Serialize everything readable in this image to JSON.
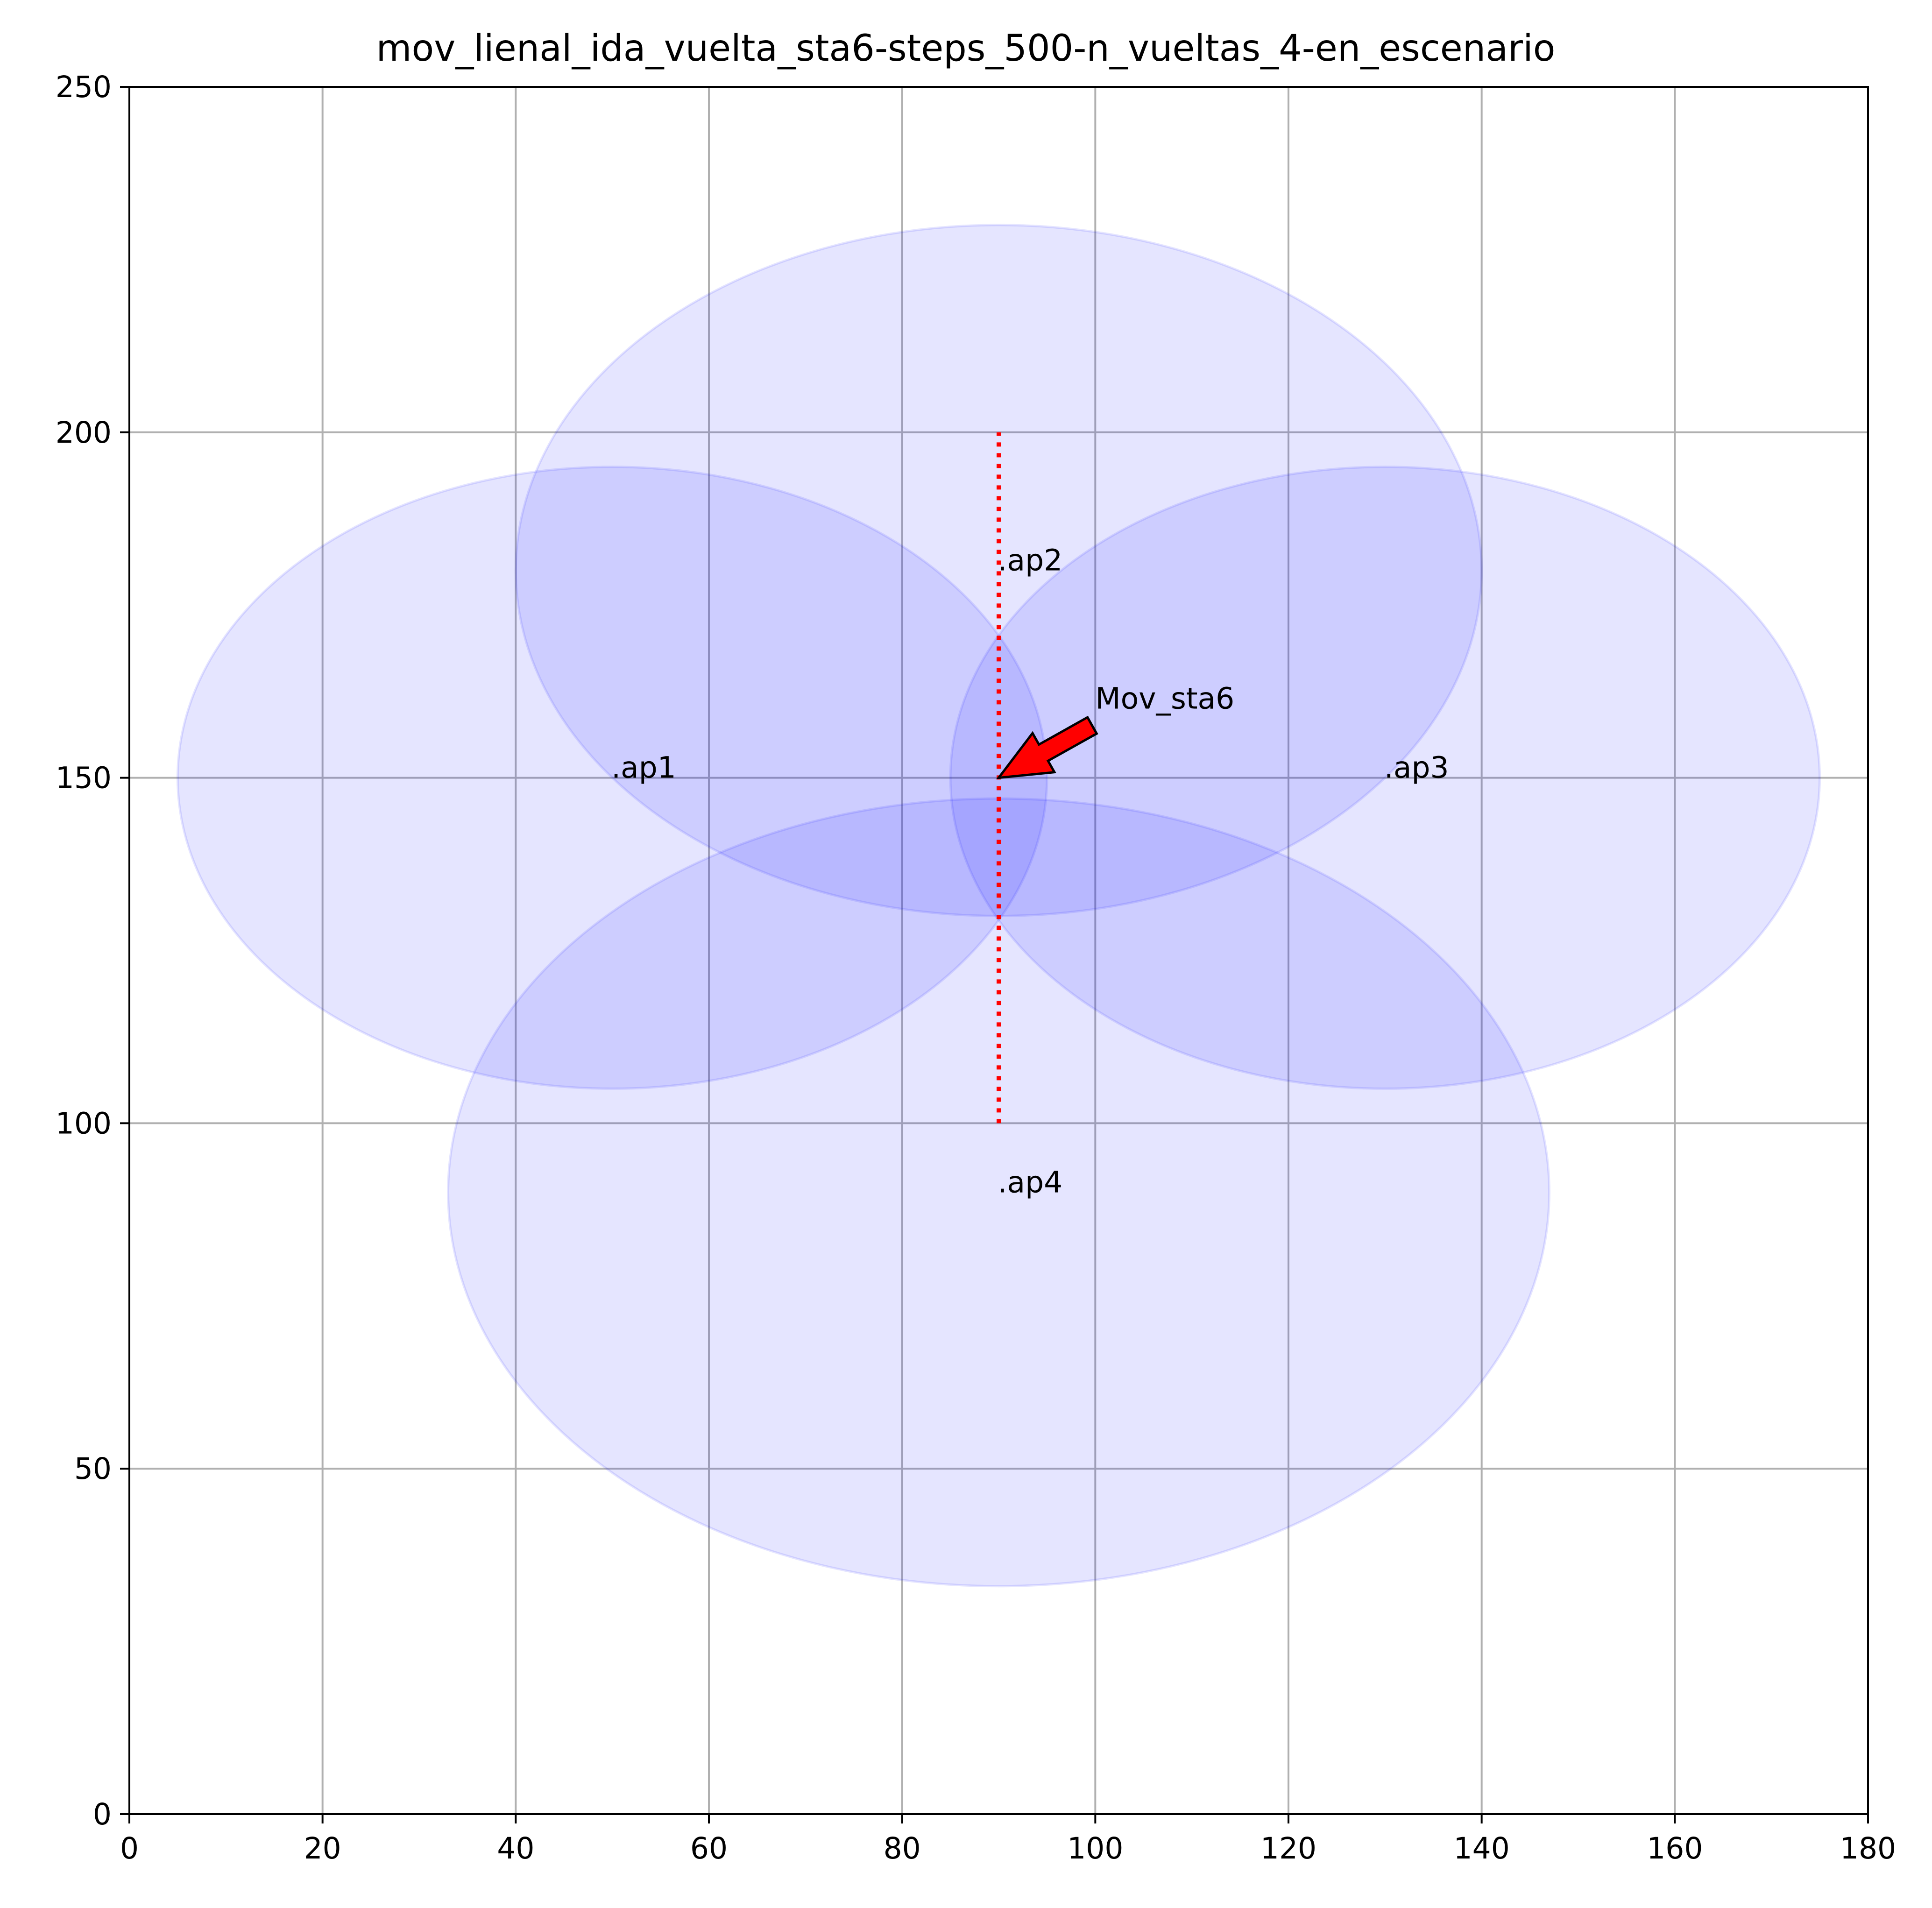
{
  "chart_data": {
    "type": "scatter",
    "title": "mov_lienal_ida_vuelta_sta6-steps_500-n_vueltas_4-en_escenario",
    "xlabel": "",
    "ylabel": "",
    "xlim": [
      0,
      180
    ],
    "ylim": [
      0,
      250
    ],
    "xticks": [
      0,
      20,
      40,
      60,
      80,
      100,
      120,
      140,
      160,
      180
    ],
    "yticks": [
      0,
      50,
      100,
      150,
      200,
      250
    ],
    "grid": true,
    "access_points": [
      {
        "label": ".ap1",
        "x": 50,
        "y": 150,
        "range_x": 45,
        "range_y": 45
      },
      {
        "label": ".ap2",
        "x": 90,
        "y": 180,
        "range_x": 50,
        "range_y": 50
      },
      {
        "label": ".ap3",
        "x": 130,
        "y": 150,
        "range_x": 45,
        "range_y": 45
      },
      {
        "label": ".ap4",
        "x": 90,
        "y": 90,
        "range_x": 57,
        "range_y": 57
      }
    ],
    "path": {
      "x": [
        90,
        90
      ],
      "y": [
        100,
        200
      ],
      "color": "#ff0000",
      "style": "dotted"
    },
    "annotation": {
      "text": "Mov_sta6",
      "text_x": 100,
      "text_y": 160,
      "point_x": 90,
      "point_y": 150,
      "arrow_color": "#ff0000"
    },
    "coverage_color": "#0000ff",
    "grid_color": "#b0b0b0"
  }
}
